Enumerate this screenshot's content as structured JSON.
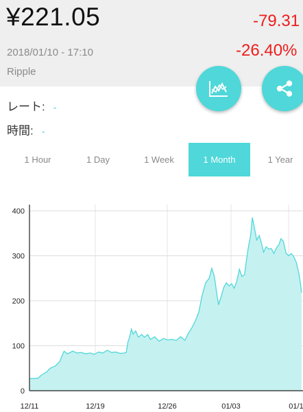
{
  "header": {
    "price": "¥221.05",
    "change_abs": "-79.31",
    "change_pct": "-26.40%",
    "timestamp": "2018/01/10 - 17:10",
    "coin": "Ripple"
  },
  "actions": {
    "chart_icon": "line-chart-icon",
    "share_icon": "share-icon",
    "accent_color": "#4fd7d9"
  },
  "info": {
    "rate_label": "レート:",
    "rate_value": "-",
    "time_label": "時間:",
    "time_value": "-"
  },
  "tabs": [
    {
      "label": "1 Hour",
      "active": false
    },
    {
      "label": "1 Day",
      "active": false
    },
    {
      "label": "1 Week",
      "active": false
    },
    {
      "label": "1 Month",
      "active": true
    },
    {
      "label": "1 Year",
      "active": false
    }
  ],
  "chart_data": {
    "type": "area",
    "x_tick_labels": [
      "12/11",
      "12/19",
      "12/26",
      "01/03",
      "01/1"
    ],
    "y_ticks": [
      0,
      100,
      200,
      300,
      400
    ],
    "ylim": [
      0,
      430
    ],
    "xlim": [
      0,
      30
    ],
    "grid": true,
    "line_color": "#4fd7d9",
    "fill_color": "#c6f1f1",
    "series": [
      {
        "points": [
          [
            0,
            27
          ],
          [
            0.5,
            27
          ],
          [
            1,
            28
          ],
          [
            1.4,
            35
          ],
          [
            2,
            42
          ],
          [
            2.4,
            50
          ],
          [
            3,
            55
          ],
          [
            3.5,
            65
          ],
          [
            4,
            88
          ],
          [
            4.4,
            82
          ],
          [
            5,
            88
          ],
          [
            5.5,
            84
          ],
          [
            6,
            85
          ],
          [
            6.5,
            82
          ],
          [
            7,
            84
          ],
          [
            7.5,
            81
          ],
          [
            8,
            86
          ],
          [
            8.5,
            84
          ],
          [
            9,
            90
          ],
          [
            9.5,
            85
          ],
          [
            10,
            86
          ],
          [
            10.5,
            83
          ],
          [
            11,
            84
          ],
          [
            11.2,
            85
          ],
          [
            11.4,
            108
          ],
          [
            11.6,
            120
          ],
          [
            11.8,
            137
          ],
          [
            12,
            126
          ],
          [
            12.3,
            133
          ],
          [
            12.6,
            119
          ],
          [
            13,
            125
          ],
          [
            13.3,
            119
          ],
          [
            13.7,
            125
          ],
          [
            14,
            114
          ],
          [
            14.5,
            120
          ],
          [
            15,
            110
          ],
          [
            15.5,
            116
          ],
          [
            16,
            113
          ],
          [
            16.5,
            114
          ],
          [
            17,
            112
          ],
          [
            17.5,
            120
          ],
          [
            18,
            112
          ],
          [
            18.4,
            128
          ],
          [
            18.8,
            140
          ],
          [
            19.2,
            155
          ],
          [
            19.6,
            175
          ],
          [
            20,
            213
          ],
          [
            20.4,
            240
          ],
          [
            20.8,
            250
          ],
          [
            21.1,
            272
          ],
          [
            21.4,
            255
          ],
          [
            21.7,
            214
          ],
          [
            21.9,
            191
          ],
          [
            22.2,
            210
          ],
          [
            22.5,
            230
          ],
          [
            22.8,
            240
          ],
          [
            23.1,
            233
          ],
          [
            23.4,
            238
          ],
          [
            23.7,
            228
          ],
          [
            24,
            243
          ],
          [
            24.3,
            270
          ],
          [
            24.6,
            254
          ],
          [
            24.9,
            258
          ],
          [
            25.1,
            288
          ],
          [
            25.3,
            315
          ],
          [
            25.6,
            345
          ],
          [
            25.8,
            385
          ],
          [
            26,
            367
          ],
          [
            26.3,
            335
          ],
          [
            26.6,
            345
          ],
          [
            26.9,
            325
          ],
          [
            27.1,
            308
          ],
          [
            27.4,
            320
          ],
          [
            27.7,
            315
          ],
          [
            28,
            316
          ],
          [
            28.3,
            305
          ],
          [
            28.6,
            318
          ],
          [
            28.9,
            325
          ],
          [
            29.1,
            338
          ],
          [
            29.4,
            332
          ],
          [
            29.7,
            306
          ],
          [
            30,
            300
          ],
          [
            30.3,
            305
          ],
          [
            30.6,
            298
          ],
          [
            30.9,
            285
          ],
          [
            31.2,
            260
          ],
          [
            31.4,
            235
          ],
          [
            31.5,
            218
          ]
        ]
      }
    ]
  }
}
